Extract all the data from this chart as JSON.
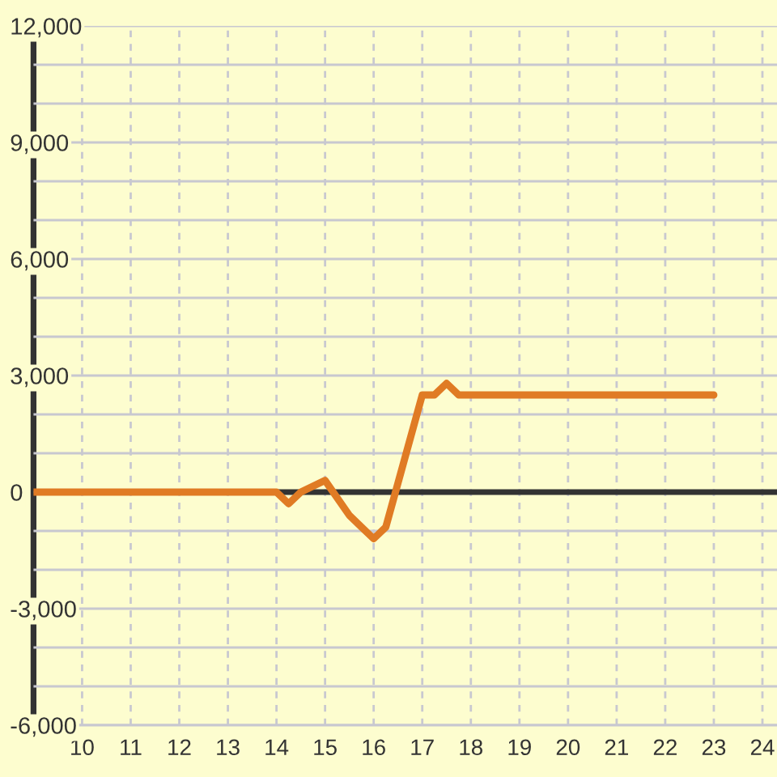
{
  "chart_data": {
    "type": "line",
    "x": [
      9,
      14,
      14.25,
      14.5,
      15,
      15.5,
      15.75,
      16,
      16.25,
      17,
      17.25,
      17.5,
      17.75,
      23
    ],
    "values": [
      0,
      0,
      -300,
      0,
      300,
      -600,
      -900,
      -1200,
      -900,
      2500,
      2500,
      2800,
      2500,
      2500
    ],
    "color": "#e07b24",
    "line_style": "solid",
    "xlim": [
      9,
      24.3
    ],
    "xticks": [
      10,
      11,
      12,
      13,
      14,
      15,
      16,
      17,
      18,
      19,
      20,
      21,
      22,
      23,
      24
    ],
    "ylim": [
      -6000,
      12000
    ],
    "yticks": [
      {
        "value": -6000,
        "label": "-6,000"
      },
      {
        "value": -5000,
        "label": null
      },
      {
        "value": -4000,
        "label": null
      },
      {
        "value": -3000,
        "label": "-3,000"
      },
      {
        "value": -2000,
        "label": null
      },
      {
        "value": -1000,
        "label": null
      },
      {
        "value": 0,
        "label": "0"
      },
      {
        "value": 1000,
        "label": null
      },
      {
        "value": 2000,
        "label": null
      },
      {
        "value": 3000,
        "label": "3,000"
      },
      {
        "value": 4000,
        "label": null
      },
      {
        "value": 5000,
        "label": null
      },
      {
        "value": 6000,
        "label": "6,000"
      },
      {
        "value": 7000,
        "label": null
      },
      {
        "value": 8000,
        "label": null
      },
      {
        "value": 9000,
        "label": "9,000"
      },
      {
        "value": 10000,
        "label": null
      },
      {
        "value": 11000,
        "label": null
      },
      {
        "value": 12000,
        "label": "12,000"
      }
    ],
    "grid": true,
    "ref_lines": [
      {
        "axis": "y",
        "value": 0,
        "color": "#333333"
      }
    ]
  }
}
